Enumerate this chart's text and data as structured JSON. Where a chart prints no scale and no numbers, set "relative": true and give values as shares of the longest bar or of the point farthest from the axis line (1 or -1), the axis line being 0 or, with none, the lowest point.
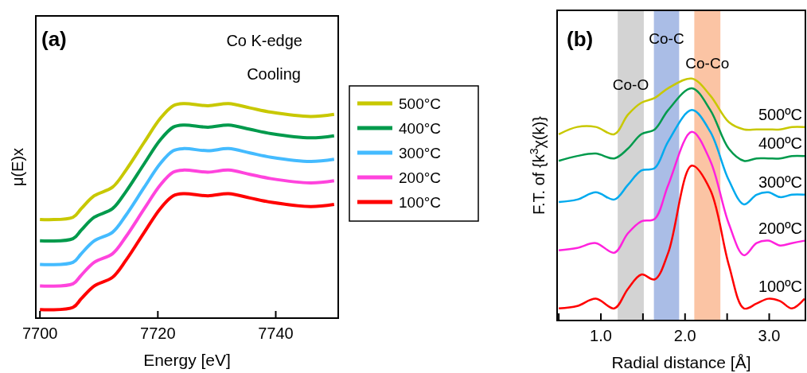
{
  "chart_data": [
    {
      "type": "line",
      "relative": true,
      "xlabel": "Energy [eV]",
      "ylabel": "μ(E)x",
      "annotations": [
        "(a)",
        "Co K-edge",
        "Cooling"
      ],
      "xlim": [
        7699.3,
        7750.6
      ],
      "xticks": [
        7700,
        7720,
        7740
      ],
      "legend": "right",
      "grid": false,
      "marker": "none",
      "line_style": "solid",
      "x": [
        7700.0,
        7705.6,
        7707.0,
        7709.2,
        7712.3,
        7714.6,
        7717.7,
        7720.4,
        7722.6,
        7724.4,
        7728.5,
        7732.0,
        7735.6,
        7739.2,
        7745.9,
        7749.9
      ],
      "series": [
        {
          "name": "500°C",
          "color": "#c8c800",
          "values": [
            0.46,
            0.47,
            0.51,
            0.57,
            0.61,
            0.69,
            0.82,
            0.93,
            0.99,
            1.0,
            0.99,
            1.0,
            0.98,
            0.96,
            0.94,
            0.95
          ]
        },
        {
          "name": "400°C",
          "color": "#009a4c",
          "values": [
            0.36,
            0.37,
            0.41,
            0.47,
            0.51,
            0.59,
            0.72,
            0.83,
            0.89,
            0.9,
            0.89,
            0.9,
            0.88,
            0.86,
            0.84,
            0.85
          ]
        },
        {
          "name": "300°C",
          "color": "#44bbff",
          "values": [
            0.25,
            0.26,
            0.3,
            0.36,
            0.4,
            0.48,
            0.61,
            0.72,
            0.78,
            0.79,
            0.78,
            0.79,
            0.77,
            0.75,
            0.73,
            0.74
          ]
        },
        {
          "name": "200°C",
          "color": "#ff44dd",
          "values": [
            0.15,
            0.16,
            0.2,
            0.26,
            0.3,
            0.38,
            0.51,
            0.62,
            0.68,
            0.69,
            0.68,
            0.69,
            0.67,
            0.65,
            0.63,
            0.64
          ]
        },
        {
          "name": "100°C",
          "color": "#ff0000",
          "values": [
            0.04,
            0.05,
            0.09,
            0.15,
            0.19,
            0.27,
            0.4,
            0.51,
            0.57,
            0.58,
            0.57,
            0.58,
            0.56,
            0.54,
            0.52,
            0.53
          ]
        }
      ]
    },
    {
      "type": "line",
      "relative": true,
      "xlabel": "Radial distance [Å]",
      "ylabel": "F.T. of {k$^{3}$χ(k)}",
      "annotations": [
        "(b)"
      ],
      "xlim": [
        0.48,
        3.43
      ],
      "xticks": [
        {
          "value": 0.5,
          "label": null
        },
        "1.0",
        {
          "value": 1.5,
          "label": null
        },
        {
          "value": 2.0,
          "label": "2.0"
        },
        {
          "value": 2.5,
          "label": null
        },
        {
          "value": 3.0,
          "label": "3.0"
        }
      ],
      "legend": false,
      "grid": false,
      "marker": "none",
      "line_style": "solid",
      "bands": [
        {
          "axis": "x",
          "from": 1.2,
          "to": 1.51,
          "label": "Co-O",
          "color": "#d3d3d3"
        },
        {
          "axis": "x",
          "from": 1.63,
          "to": 1.93,
          "label": "Co-C",
          "color": "#aabde6"
        },
        {
          "axis": "x",
          "from": 2.11,
          "to": 2.42,
          "label": "Co-Co",
          "color": "#fbc4a4"
        }
      ],
      "x": [
        0.5,
        0.72,
        0.94,
        1.16,
        1.32,
        1.48,
        1.64,
        1.8,
        2.08,
        2.3,
        2.52,
        2.7,
        2.85,
        2.99,
        3.13,
        3.27,
        3.42
      ],
      "series": [
        {
          "name": "500ºC",
          "color": "#c8c800",
          "values": [
            0.77,
            0.8,
            0.8,
            0.77,
            0.85,
            0.9,
            0.92,
            0.96,
            1.0,
            0.93,
            0.82,
            0.79,
            0.79,
            0.79,
            0.79,
            0.8,
            0.8
          ]
        },
        {
          "name": "400ºC",
          "color": "#009a4c",
          "values": [
            0.66,
            0.68,
            0.69,
            0.67,
            0.71,
            0.77,
            0.79,
            0.87,
            0.96,
            0.87,
            0.71,
            0.66,
            0.67,
            0.67,
            0.67,
            0.68,
            0.68
          ]
        },
        {
          "name": "300ºC",
          "color": "#00aaee",
          "values": [
            0.49,
            0.5,
            0.53,
            0.5,
            0.56,
            0.62,
            0.63,
            0.74,
            0.87,
            0.78,
            0.58,
            0.48,
            0.52,
            0.53,
            0.51,
            0.52,
            0.52
          ]
        },
        {
          "name": "200ºC",
          "color": "#ff22dd",
          "values": [
            0.29,
            0.3,
            0.32,
            0.28,
            0.36,
            0.41,
            0.42,
            0.56,
            0.78,
            0.66,
            0.4,
            0.27,
            0.32,
            0.33,
            0.31,
            0.32,
            0.33
          ]
        },
        {
          "name": "100ºC",
          "color": "#ff0000",
          "values": [
            0.05,
            0.06,
            0.09,
            0.05,
            0.13,
            0.19,
            0.17,
            0.28,
            0.64,
            0.54,
            0.23,
            0.05,
            0.07,
            0.09,
            0.08,
            0.05,
            0.09
          ]
        }
      ]
    }
  ]
}
